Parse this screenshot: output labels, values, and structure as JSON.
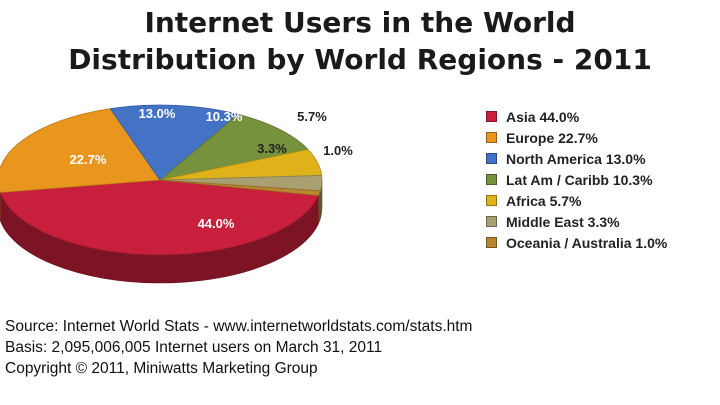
{
  "chart_data": {
    "type": "pie",
    "title": [
      "Internet Users in the World",
      "Distribution by World Regions - 2011"
    ],
    "slices": [
      {
        "label": "Asia",
        "value": 44.0,
        "display": "44.0%",
        "legend": "Asia  44.0%",
        "color": "#c8203c"
      },
      {
        "label": "Europe",
        "value": 22.7,
        "display": "22.7%",
        "legend": "Europe  22.7%",
        "color": "#e8961e"
      },
      {
        "label": "North America",
        "value": 13.0,
        "display": "13.0%",
        "legend": "North America  13.0%",
        "color": "#4472c4"
      },
      {
        "label": "Lat Am / Caribb",
        "value": 10.3,
        "display": "10.3%",
        "legend": "Lat Am / Caribb  10.3%",
        "color": "#76923c"
      },
      {
        "label": "Africa",
        "value": 5.7,
        "display": "5.7%",
        "legend": "Africa  5.7%",
        "color": "#e0b21a"
      },
      {
        "label": "Middle East",
        "value": 3.3,
        "display": "3.3%",
        "legend": "Middle East  3.3%",
        "color": "#a8a070"
      },
      {
        "label": "Oceania / Australia",
        "value": 1.0,
        "display": "1.0%",
        "legend": "Oceania / Australia  1.0%",
        "color": "#b8862e"
      }
    ],
    "legend_position": "right"
  },
  "footer": {
    "source": "Source: Internet World Stats -  www.internetworldstats.com/stats.htm",
    "basis": "Basis: 2,095,006,005 Internet users on March 31, 2011",
    "copyright": "Copyright © 2011, Miniwatts Marketing Group"
  }
}
